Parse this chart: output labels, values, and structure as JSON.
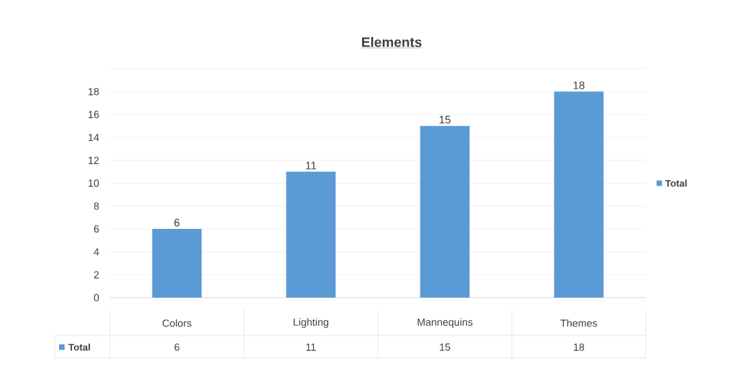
{
  "chart_data": {
    "type": "bar",
    "title": "Elements",
    "categories": [
      "Colors",
      "Lighting",
      "Mannequins",
      "Themes"
    ],
    "series": [
      {
        "name": "Total",
        "color": "#5b9bd5",
        "values": [
          6,
          11,
          15,
          18
        ]
      }
    ],
    "ylim": [
      0,
      20
    ],
    "yticks": [
      0,
      2,
      4,
      6,
      8,
      10,
      12,
      14,
      16,
      18,
      {
        "value": 20,
        "label": null
      }
    ],
    "annotations": [
      "6",
      "11",
      "15",
      "18"
    ],
    "grid": "y",
    "legend": "right",
    "data_labels": true
  }
}
